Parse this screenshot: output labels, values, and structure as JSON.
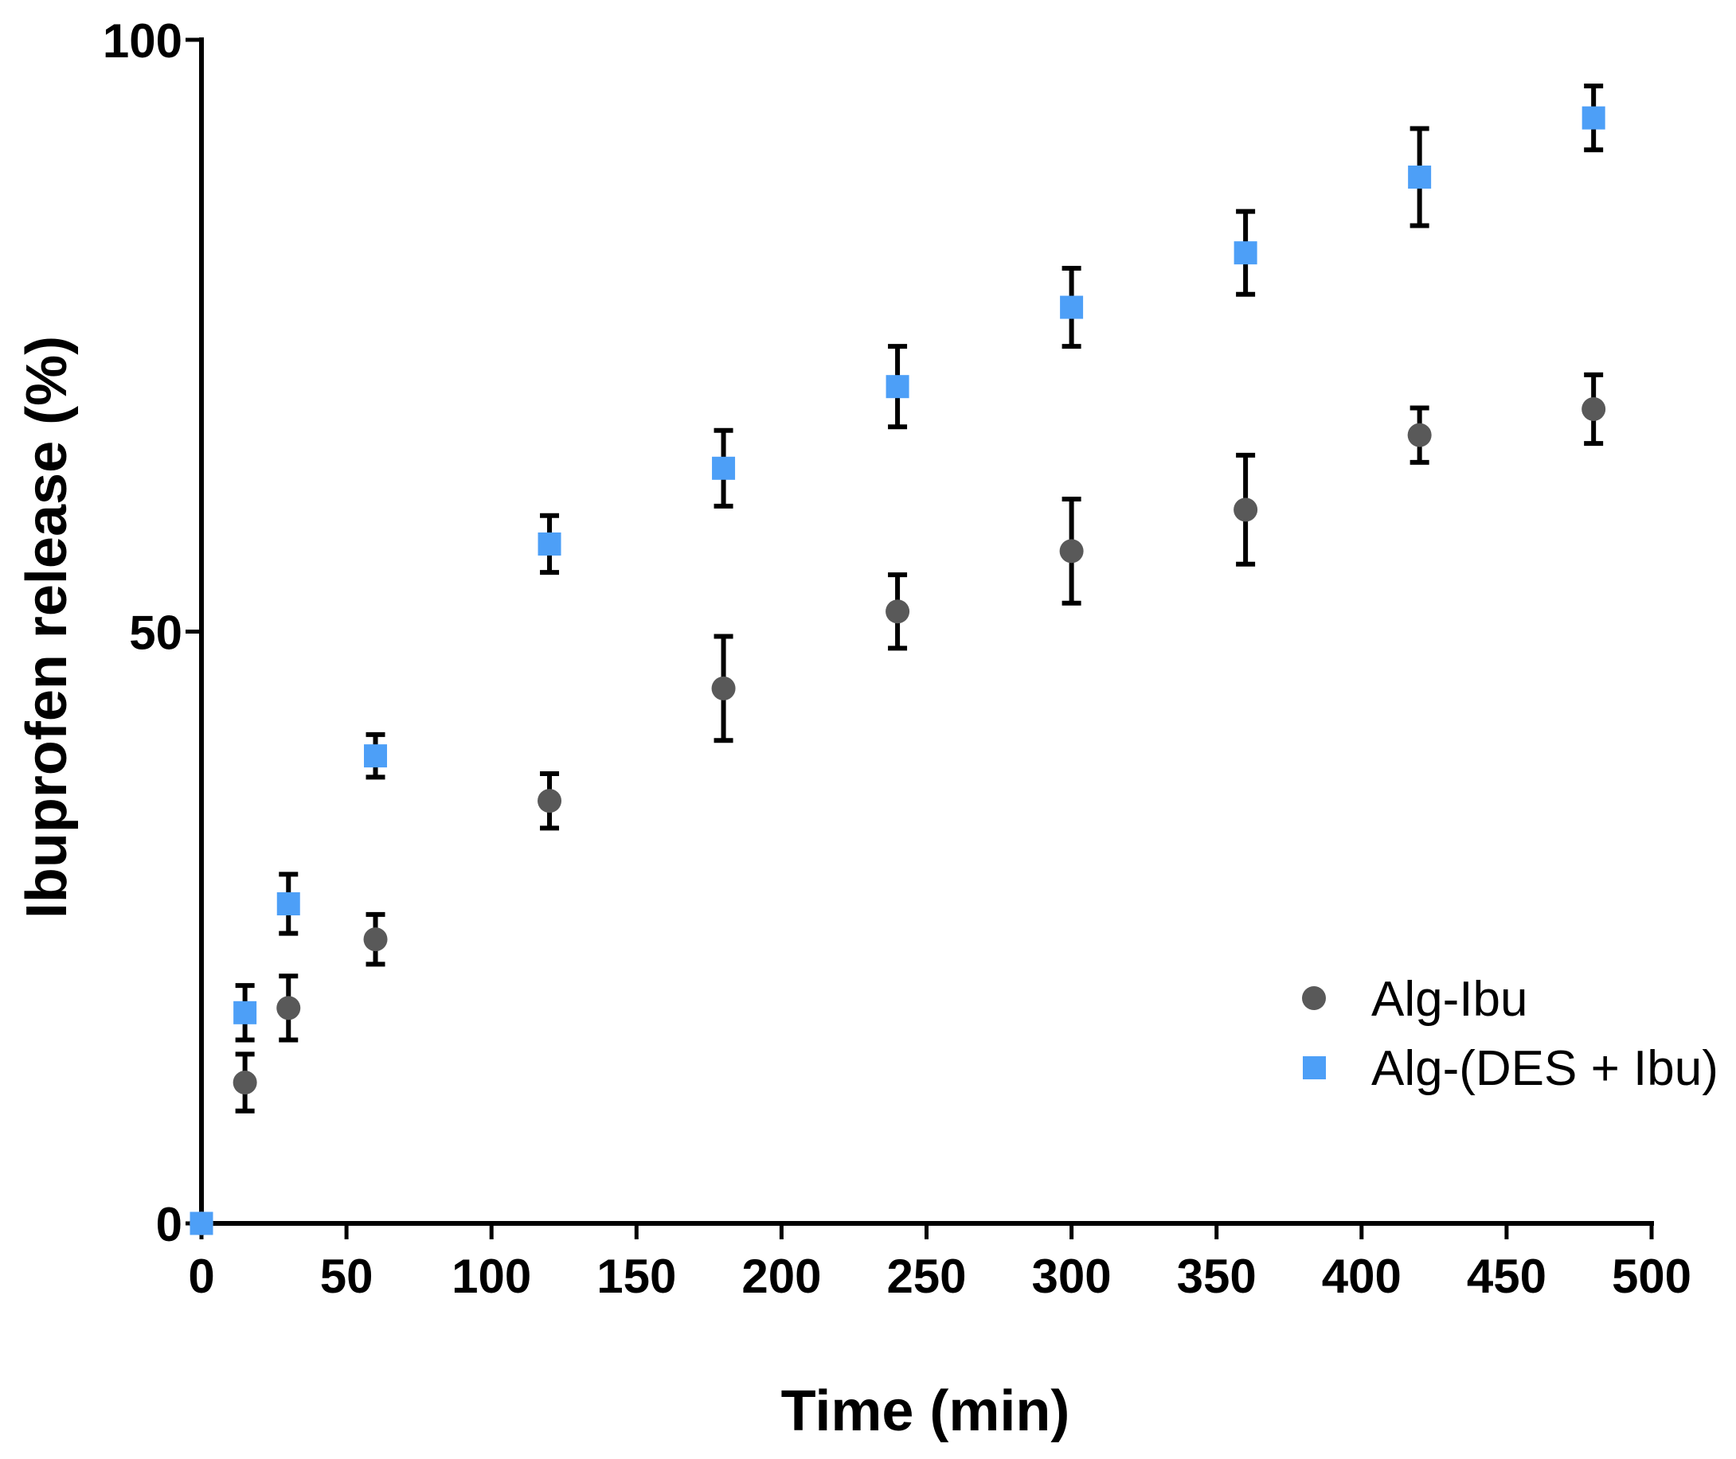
{
  "chart_data": {
    "type": "scatter",
    "xlabel": "Time  (min)",
    "ylabel": "Ibuprofen release (%)",
    "xlim": [
      0,
      500
    ],
    "ylim": [
      0,
      100
    ],
    "xticks": [
      0,
      50,
      100,
      150,
      200,
      250,
      300,
      350,
      400,
      450,
      500
    ],
    "yticks": [
      0,
      50,
      100
    ],
    "grid": false,
    "legend_position": "bottom-right",
    "series": [
      {
        "name": "Alg-Ibu",
        "marker": "circle",
        "color": "#595959",
        "x": [
          0,
          15,
          30,
          60,
          120,
          180,
          240,
          300,
          360,
          420,
          480
        ],
        "y": [
          0,
          11.9,
          18.2,
          24,
          35.7,
          45.2,
          51.7,
          56.8,
          60.3,
          66.6,
          68.8
        ],
        "err": [
          0,
          2.4,
          2.7,
          2.1,
          2.3,
          4.4,
          3.1,
          4.4,
          4.6,
          2.3,
          2.9
        ]
      },
      {
        "name": "Alg-(DES + Ibu)",
        "marker": "square",
        "color": "#4d9ff7",
        "x": [
          0,
          15,
          30,
          60,
          120,
          180,
          240,
          300,
          360,
          420,
          480
        ],
        "y": [
          0,
          17.8,
          27,
          39.5,
          57.4,
          63.8,
          70.7,
          77.4,
          82,
          88.4,
          93.4
        ],
        "err": [
          0,
          2.3,
          2.5,
          1.8,
          2.4,
          3.2,
          3.4,
          3.3,
          3.5,
          4.1,
          2.7
        ]
      }
    ]
  }
}
